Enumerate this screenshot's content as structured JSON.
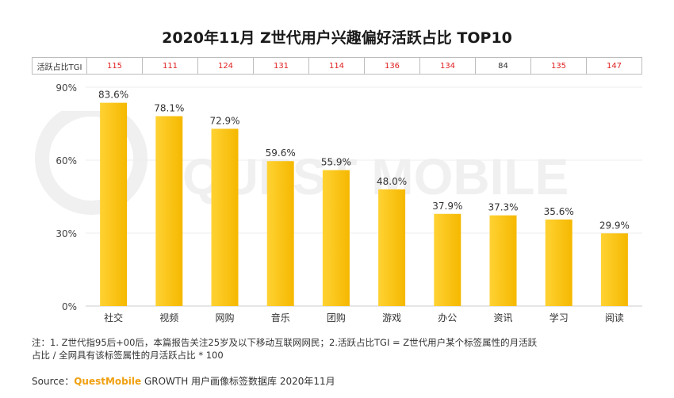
{
  "title": "2020年11月 Z世代用户兴趣偏好活跃占比 TOP10",
  "watermark_text": "QUEST MOBILE",
  "tgi_row": {
    "label": "活跃占比TGI",
    "values": [
      "115",
      "111",
      "124",
      "131",
      "114",
      "136",
      "134",
      "84",
      "135",
      "147"
    ]
  },
  "chart_data": {
    "type": "bar",
    "categories": [
      "社交",
      "视频",
      "网购",
      "音乐",
      "团购",
      "游戏",
      "办公",
      "资讯",
      "学习",
      "阅读"
    ],
    "values": [
      83.6,
      78.1,
      72.9,
      59.6,
      55.9,
      48.0,
      37.9,
      37.3,
      35.6,
      29.9
    ],
    "value_labels": [
      "83.6%",
      "78.1%",
      "72.9%",
      "59.6%",
      "55.9%",
      "48.0%",
      "37.9%",
      "37.3%",
      "35.6%",
      "29.9%"
    ],
    "ylim": [
      0,
      90
    ],
    "yticks": [
      "0%",
      "30%",
      "60%",
      "90%"
    ],
    "ytick_values": [
      0,
      30,
      60,
      90
    ],
    "bar_color": "#f5b800",
    "bar_color_light": "#ffd233"
  },
  "note": {
    "line1": "注：1. Z世代指95后+00后，本篇报告关注25岁及以下移动互联网网民；2.活跃占比TGI = Z世代用户某个标签属性的月活跃",
    "line2": "占比 / 全网具有该标签属性的月活跃占比 * 100"
  },
  "source": {
    "prefix": "Source：",
    "brand": "QuestMobile",
    "rest": " GROWTH 用户画像标签数据库 2020年11月"
  }
}
